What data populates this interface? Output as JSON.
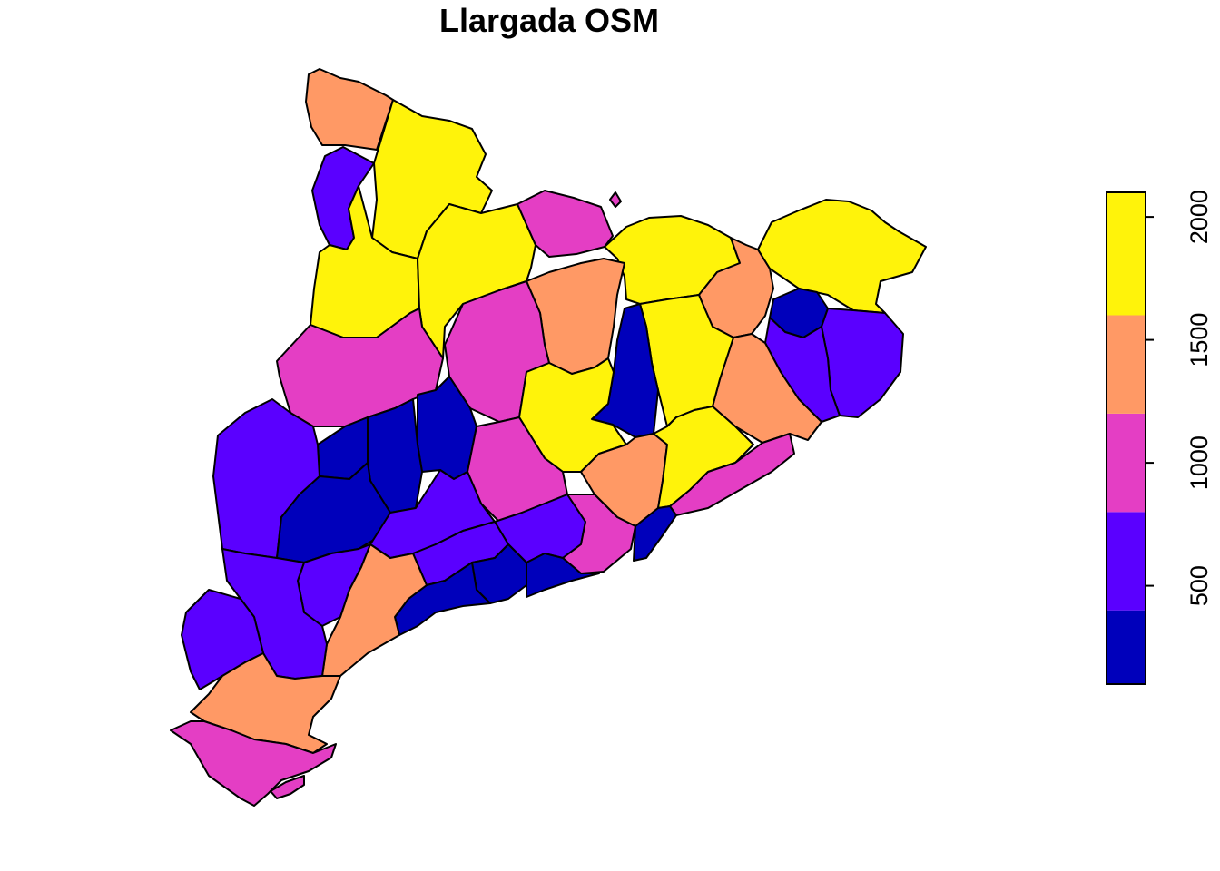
{
  "title": "Llargada OSM",
  "legend": {
    "ticks": [
      500,
      1000,
      1500,
      2000
    ],
    "tick_labels": [
      "500",
      "1000",
      "1500",
      "2000"
    ],
    "range": [
      100,
      2100
    ],
    "bins": [
      {
        "from": 100,
        "to": 400,
        "color": "#0000bb"
      },
      {
        "from": 400,
        "to": 800,
        "color": "#5a00ff"
      },
      {
        "from": 800,
        "to": 1200,
        "color": "#e43ec4"
      },
      {
        "from": 1200,
        "to": 1600,
        "color": "#ff9965"
      },
      {
        "from": 1600,
        "to": 2100,
        "color": "#fff30a"
      }
    ]
  }
}
